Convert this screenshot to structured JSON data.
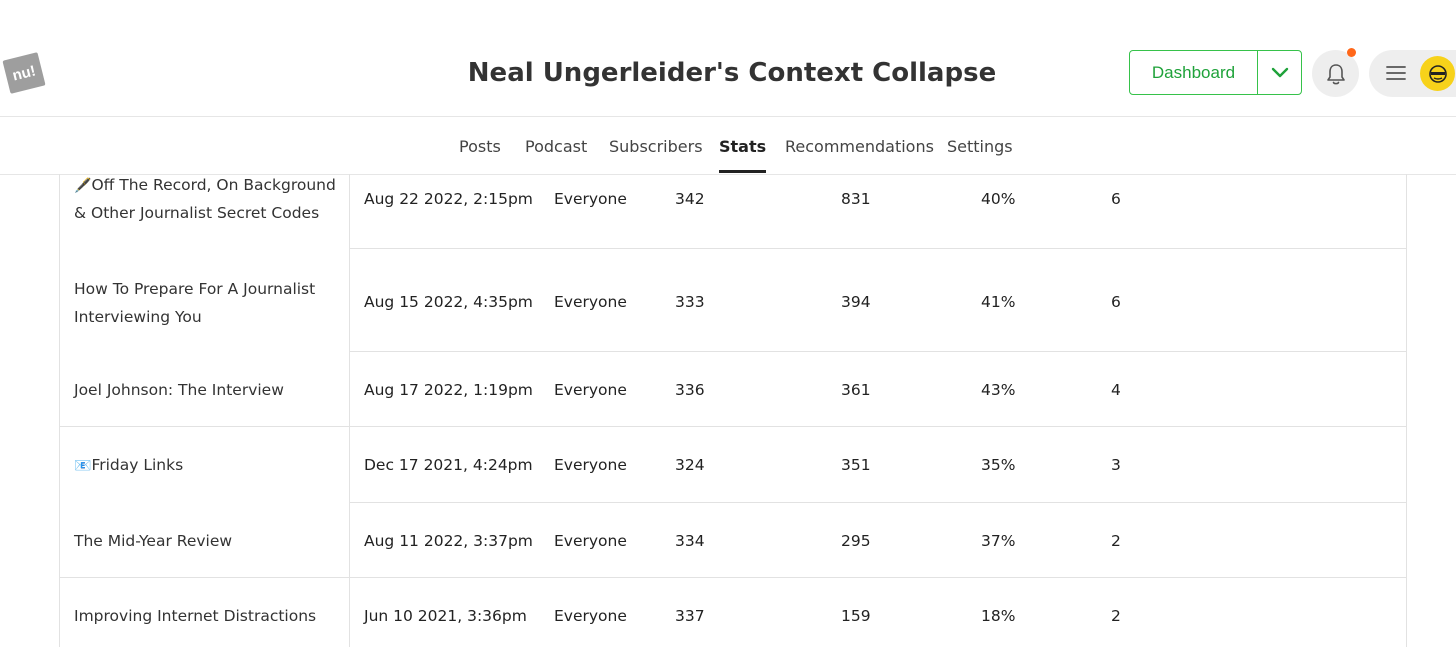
{
  "header": {
    "logo_text": "nu!",
    "site_title": "Neal Ungerleider's Context Collapse",
    "dashboard_label": "Dashboard"
  },
  "colors": {
    "accent_green": "#1fa23a",
    "notification_dot": "#ff6719",
    "avatar_bg": "#f7d21a"
  },
  "icons": {
    "caret": "chevron-down-icon",
    "bell": "bell-icon",
    "menu": "hamburger-icon"
  },
  "nav": {
    "tabs": [
      {
        "label": "Posts"
      },
      {
        "label": "Podcast"
      },
      {
        "label": "Subscribers"
      },
      {
        "label": "Stats",
        "active": true
      },
      {
        "label": "Recommendations"
      },
      {
        "label": "Settings"
      }
    ]
  },
  "table": {
    "rows": [
      {
        "emoji": "🖋️",
        "title": "Off The Record, On Background & Other Journalist Secret Codes",
        "date": "Aug 22 2022, 2:15pm",
        "audience": "Everyone",
        "sent": "342",
        "views": "831",
        "open_rate": "40%",
        "count": "6"
      },
      {
        "emoji": "",
        "title": "How To Prepare For A Journalist Interviewing You",
        "date": "Aug 15 2022, 4:35pm",
        "audience": "Everyone",
        "sent": "333",
        "views": "394",
        "open_rate": "41%",
        "count": "6"
      },
      {
        "emoji": "",
        "title": "Joel Johnson: The Interview",
        "date": "Aug 17 2022, 1:19pm",
        "audience": "Everyone",
        "sent": "336",
        "views": "361",
        "open_rate": "43%",
        "count": "4"
      },
      {
        "emoji": "📧",
        "title": "Friday Links",
        "date": "Dec 17 2021, 4:24pm",
        "audience": "Everyone",
        "sent": "324",
        "views": "351",
        "open_rate": "35%",
        "count": "3"
      },
      {
        "emoji": "",
        "title": "The Mid-Year Review",
        "date": "Aug 11 2022, 3:37pm",
        "audience": "Everyone",
        "sent": "334",
        "views": "295",
        "open_rate": "37%",
        "count": "2"
      },
      {
        "emoji": "",
        "title": "Improving Internet Distractions",
        "date": "Jun 10 2021, 3:36pm",
        "audience": "Everyone",
        "sent": "337",
        "views": "159",
        "open_rate": "18%",
        "count": "2"
      }
    ]
  }
}
